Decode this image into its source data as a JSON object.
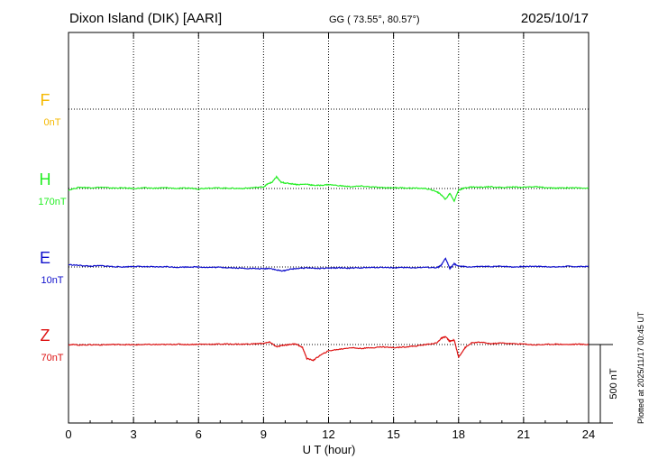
{
  "header": {
    "station": "Dixon Island (DIK)  [AARI]",
    "coords": "GG ( 73.55°,  80.57°)",
    "date": "2025/10/17"
  },
  "footer": {
    "plotted": "Plotted at 2025/11/17 00:45 UT"
  },
  "chart_data": {
    "type": "line",
    "xlabel": "U T (hour)",
    "xlim": [
      0,
      24
    ],
    "x_ticks": [
      0,
      3,
      6,
      9,
      12,
      15,
      18,
      21,
      24
    ],
    "x_tick_labels": [
      "0",
      "3",
      "6",
      "9",
      "12",
      "15",
      "18",
      "21",
      "24"
    ],
    "scale_bar": {
      "label": "500 nT",
      "value_nT": 500
    },
    "grid": true,
    "series": [
      {
        "name": "F",
        "baseline_label": "0nT",
        "color": "#f5b800",
        "x": [],
        "values": []
      },
      {
        "name": "H",
        "baseline_label": "170nT",
        "color": "#22ee22",
        "x": [
          0,
          0.5,
          1,
          1.5,
          2,
          2.5,
          3,
          3.5,
          4,
          4.5,
          5,
          5.5,
          6,
          6.5,
          7,
          7.5,
          8,
          8.5,
          9,
          9.2,
          9.4,
          9.6,
          9.8,
          10,
          10.3,
          10.6,
          11,
          11.3,
          11.6,
          12,
          12.5,
          13,
          13.5,
          14,
          14.5,
          15,
          15.5,
          16,
          16.5,
          17,
          17.2,
          17.4,
          17.6,
          17.8,
          18,
          18.3,
          18.6,
          19,
          19.5,
          20,
          20.5,
          21,
          21.5,
          22,
          22.5,
          23,
          23.5,
          24
        ],
        "values": [
          -10,
          8,
          5,
          8,
          3,
          4,
          0,
          4,
          2,
          5,
          0,
          3,
          -2,
          4,
          3,
          2,
          0,
          5,
          10,
          30,
          40,
          75,
          40,
          35,
          30,
          25,
          28,
          20,
          20,
          25,
          18,
          12,
          15,
          10,
          5,
          5,
          4,
          2,
          0,
          -20,
          -40,
          -70,
          -30,
          -80,
          -10,
          5,
          10,
          8,
          12,
          6,
          10,
          8,
          12,
          5,
          2,
          5,
          4,
          3
        ]
      },
      {
        "name": "E",
        "baseline_label": "10nT",
        "color": "#1010cc",
        "x": [
          0,
          0.5,
          1,
          1.5,
          2,
          2.5,
          3,
          3.5,
          4,
          4.5,
          5,
          5.5,
          6,
          6.5,
          7,
          7.5,
          8,
          8.5,
          9,
          9.3,
          9.6,
          9.9,
          10.2,
          10.5,
          11,
          11.5,
          12,
          12.5,
          13,
          13.5,
          14,
          14.5,
          15,
          15.5,
          16,
          16.5,
          17,
          17.2,
          17.4,
          17.6,
          17.8,
          18,
          18.5,
          19,
          19.5,
          20,
          20.5,
          21,
          21.5,
          22,
          22.5,
          23,
          23.5,
          24
        ],
        "values": [
          15,
          10,
          5,
          8,
          3,
          0,
          4,
          2,
          0,
          2,
          -2,
          0,
          0,
          -3,
          -2,
          -5,
          -8,
          -10,
          -12,
          -8,
          -20,
          -25,
          -15,
          -10,
          -5,
          -10,
          -8,
          -5,
          -8,
          -5,
          -4,
          -2,
          -5,
          -4,
          -5,
          -2,
          -5,
          10,
          55,
          -10,
          20,
          5,
          0,
          3,
          2,
          5,
          0,
          3,
          5,
          2,
          0,
          4,
          2,
          3
        ]
      },
      {
        "name": "Z",
        "baseline_label": "70nT",
        "color": "#dd1010",
        "x": [
          0,
          0.5,
          1,
          1.5,
          2,
          2.5,
          3,
          3.5,
          4,
          4.5,
          5,
          5.5,
          6,
          6.5,
          7,
          7.5,
          8,
          8.5,
          9,
          9.3,
          9.6,
          9.9,
          10.2,
          10.5,
          10.8,
          11,
          11.3,
          11.6,
          12,
          12.5,
          13,
          13.5,
          14,
          14.5,
          15,
          15.5,
          16,
          16.5,
          17,
          17.2,
          17.4,
          17.6,
          17.8,
          18,
          18.3,
          18.6,
          19,
          19.5,
          20,
          20.5,
          21,
          21.5,
          22,
          22.5,
          23,
          23.5,
          24
        ],
        "values": [
          0,
          -3,
          -1,
          -2,
          0,
          0,
          -2,
          0,
          0,
          0,
          2,
          0,
          2,
          2,
          3,
          3,
          2,
          4,
          8,
          15,
          -15,
          -5,
          0,
          5,
          -20,
          -90,
          -100,
          -70,
          -40,
          -30,
          -20,
          -25,
          -20,
          -15,
          -20,
          -15,
          -10,
          0,
          10,
          40,
          50,
          20,
          30,
          -80,
          -20,
          10,
          15,
          5,
          10,
          5,
          3,
          -2,
          0,
          3,
          0,
          2,
          0
        ]
      }
    ]
  }
}
